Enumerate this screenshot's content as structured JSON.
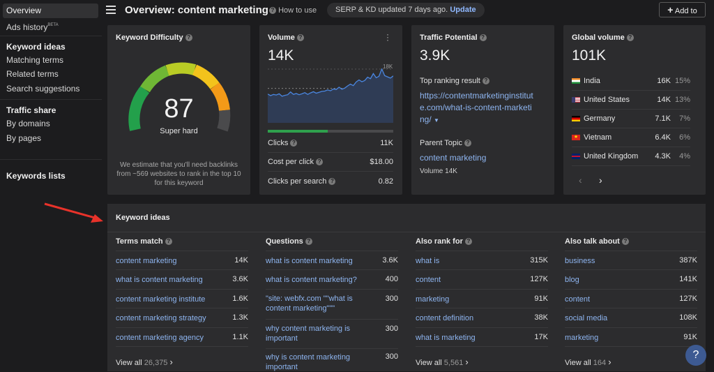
{
  "sidebar": {
    "overview": "Overview",
    "ads_history": "Ads history",
    "beta": "BETA",
    "keyword_ideas_head": "Keyword ideas",
    "matching_terms": "Matching terms",
    "related_terms": "Related terms",
    "search_suggestions": "Search suggestions",
    "traffic_share_head": "Traffic share",
    "by_domains": "By domains",
    "by_pages": "By pages",
    "keywords_lists": "Keywords lists"
  },
  "header": {
    "title": "Overview: content marketing",
    "how_to_use": "How to use",
    "serp_status": "SERP & KD updated 7 days ago.",
    "update_link": "Update",
    "add_to": "Add to"
  },
  "kd": {
    "title": "Keyword Difficulty",
    "value": 87,
    "value_text": "87",
    "level": "Super hard",
    "note": "We estimate that you'll need backlinks from ~569 websites to rank in the top 10 for this keyword"
  },
  "volume": {
    "title": "Volume",
    "value": "14K",
    "max_label": "18K",
    "clicks_label": "Clicks",
    "clicks_value": "11K",
    "cpc_label": "Cost per click",
    "cpc_value": "$18.00",
    "cps_label": "Clicks per search",
    "cps_value": "0.82",
    "clicks_share": 0.48,
    "series": [
      9.5,
      9,
      9.4,
      9.2,
      9.6,
      8.8,
      9.1,
      9.3,
      10.2,
      9.4,
      9.7,
      9.3,
      9.6,
      10,
      9.4,
      9.9,
      10.3,
      9.8,
      10.1,
      10.4,
      10.5,
      10.9,
      10.6,
      11.2,
      11,
      11.8,
      11.1,
      11.5,
      12.2,
      12.8,
      12.3,
      13.5,
      14.2,
      13.6,
      14,
      15.1,
      14.6,
      16.3,
      14.9,
      15.4,
      17.8,
      15.6,
      15.2,
      14.8,
      15.5
    ]
  },
  "tp": {
    "title": "Traffic Potential",
    "value": "3.9K",
    "top_label": "Top ranking result",
    "url_lines": [
      "https://contentmarketinginstitut",
      "e.com/what-is-content-marketi",
      "ng/"
    ],
    "parent_label": "Parent Topic",
    "parent_value": "content marketing",
    "parent_volume": "Volume 14K"
  },
  "gv": {
    "title": "Global volume",
    "value": "101K",
    "rows": [
      {
        "country": "India",
        "volume": "16K",
        "share": "15%",
        "flag": "india"
      },
      {
        "country": "United States",
        "volume": "14K",
        "share": "13%",
        "flag": "usa"
      },
      {
        "country": "Germany",
        "volume": "7.1K",
        "share": "7%",
        "flag": "germany"
      },
      {
        "country": "Vietnam",
        "volume": "6.4K",
        "share": "6%",
        "flag": "vietnam"
      },
      {
        "country": "United Kingdom",
        "volume": "4.3K",
        "share": "4%",
        "flag": "uk"
      }
    ]
  },
  "ki": {
    "title": "Keyword ideas",
    "columns": [
      {
        "head": "Terms match",
        "items": [
          [
            "content marketing",
            "14K"
          ],
          [
            "what is content marketing",
            "3.6K"
          ],
          [
            "content marketing institute",
            "1.6K"
          ],
          [
            "content marketing strategy",
            "1.3K"
          ],
          [
            "content marketing agency",
            "1.1K"
          ]
        ],
        "view_all": "View all",
        "count": "26,375"
      },
      {
        "head": "Questions",
        "items": [
          [
            "what is content marketing",
            "3.6K"
          ],
          [
            "what is content marketing?",
            "400"
          ],
          [
            "\"site: webfx.com \"\"what is content marketing\"\"\"",
            "300"
          ],
          [
            "why content marketing is important",
            "300"
          ],
          [
            "why is content marketing important",
            "300"
          ]
        ]
      },
      {
        "head": "Also rank for",
        "items": [
          [
            "what is",
            "315K"
          ],
          [
            "content",
            "127K"
          ],
          [
            "marketing",
            "91K"
          ],
          [
            "content definition",
            "38K"
          ],
          [
            "what is marketing",
            "17K"
          ]
        ],
        "view_all": "View all",
        "count": "5,561"
      },
      {
        "head": "Also talk about",
        "items": [
          [
            "business",
            "387K"
          ],
          [
            "blog",
            "141K"
          ],
          [
            "content",
            "127K"
          ],
          [
            "social media",
            "108K"
          ],
          [
            "marketing",
            "91K"
          ]
        ],
        "view_all": "View all",
        "count": "164"
      }
    ]
  },
  "help": "?"
}
